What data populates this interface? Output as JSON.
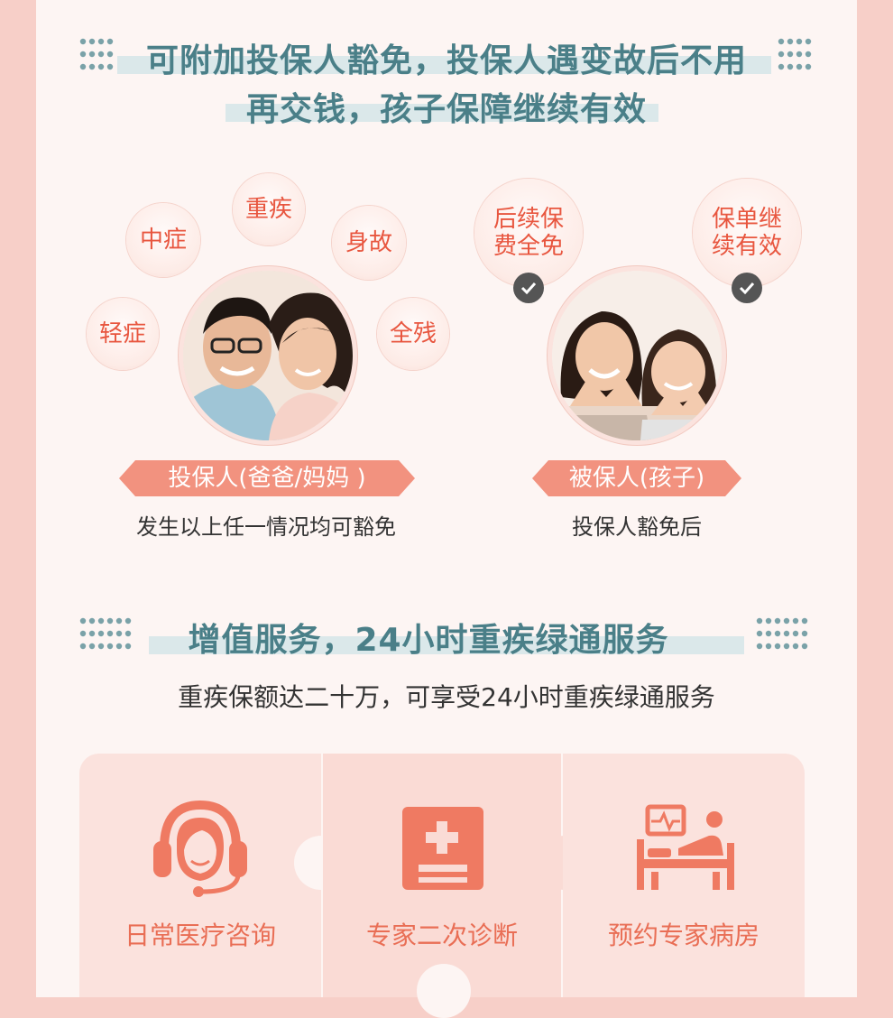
{
  "section1": {
    "heading_line1": "可附加投保人豁免，投保人遇变故后不用",
    "heading_line2": "再交钱，孩子保障继续有效"
  },
  "left_group": {
    "conditions": [
      "轻症",
      "中症",
      "重疾",
      "身故",
      "全残"
    ],
    "ribbon": "投保人(爸爸/妈妈 )",
    "caption": "发生以上任一情况均可豁免"
  },
  "right_group": {
    "benefits": [
      "后续保费全免",
      "保单继续有效"
    ],
    "ribbon": "被保人(孩子)",
    "caption": "投保人豁免后"
  },
  "section2": {
    "heading": "增值服务，24小时重疾绿通服务",
    "subtitle": "重疾保额达二十万，可享受24小时重疾绿通服务"
  },
  "services": [
    {
      "label": "日常医疗咨询",
      "icon": "headset-agent-icon"
    },
    {
      "label": "专家二次诊断",
      "icon": "medical-report-icon"
    },
    {
      "label": "预约专家病房",
      "icon": "hospital-bed-icon"
    }
  ],
  "colors": {
    "accent": "#e8563f",
    "heading": "#4a7f88",
    "ribbon": "#f2927f"
  }
}
